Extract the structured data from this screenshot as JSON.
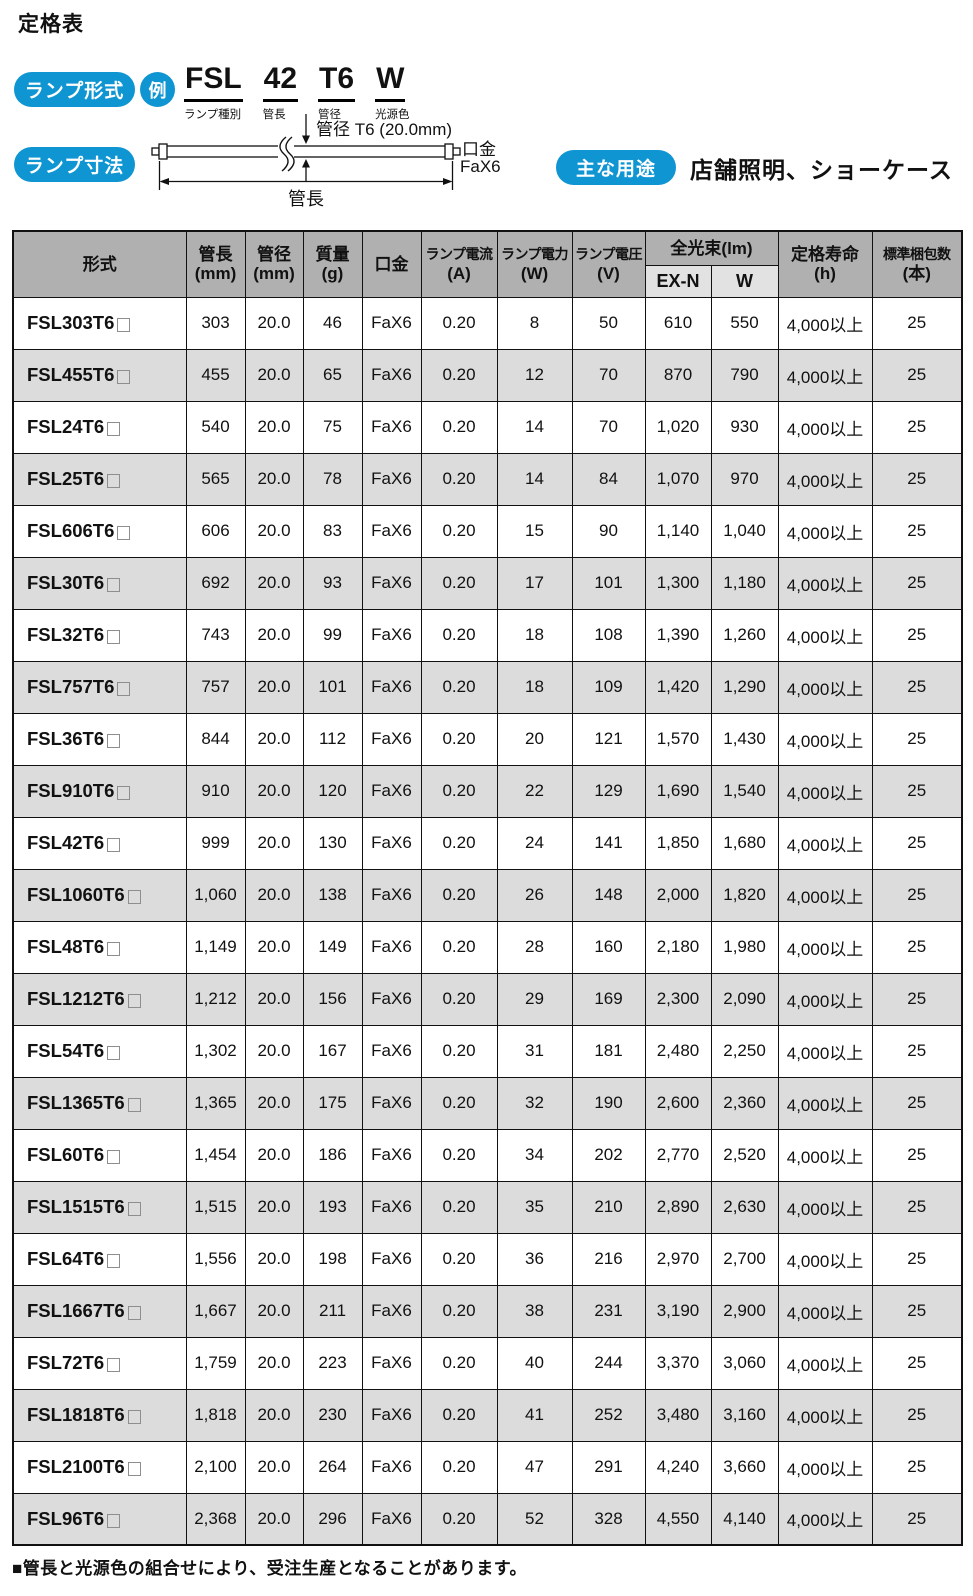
{
  "page": {
    "title": "定格表",
    "footnote": "■管長と光源色の組合せにより、受注生産となることがあります。"
  },
  "colors": {
    "accent_blue": "#1095d3",
    "header_gray": "#b0b0b0",
    "subheader_gray": "#e2e2e2",
    "row_alt_gray": "#dcdcdc",
    "border_black": "#111111"
  },
  "lamp_format": {
    "badge": "ランプ形式",
    "example_badge": "例",
    "tokens": [
      {
        "text": "FSL",
        "label": "ランプ種別"
      },
      {
        "text": "42",
        "label": "管長"
      },
      {
        "text": "T6",
        "label": "管径"
      },
      {
        "text": "W",
        "label": "光源色"
      }
    ]
  },
  "lamp_dimensions": {
    "badge": "ランプ寸法",
    "diameter_label": "管径 T6 (20.0mm)",
    "base_label_line1": "口金",
    "base_label_line2": "FaX6",
    "length_label": "管長"
  },
  "main_use": {
    "badge": "主な用途",
    "text": "店舗照明、ショーケース"
  },
  "table": {
    "headers": {
      "model": "形式",
      "length_line1": "管長",
      "length_line2": "(mm)",
      "diameter_line1": "管径",
      "diameter_line2": "(mm)",
      "mass_line1": "質量",
      "mass_line2": "(g)",
      "base": "口金",
      "current_line1": "ランプ電流",
      "current_line2": "(A)",
      "power_line1": "ランプ電力",
      "power_line2": "(W)",
      "voltage_line1": "ランプ電圧",
      "voltage_line2": "(V)",
      "flux_group": "全光束(lm)",
      "flux_exn": "EX-N",
      "flux_w": "W",
      "life_line1": "定格寿命",
      "life_line2": "(h)",
      "pack_line1": "標準梱包数",
      "pack_line2": "(本)"
    },
    "column_keys": [
      "model",
      "length_mm",
      "diameter_mm",
      "mass_g",
      "base",
      "current_a",
      "power_w",
      "voltage_v",
      "flux_exn_lm",
      "flux_w_lm",
      "rated_life_h",
      "pack_qty"
    ],
    "rows": [
      [
        "FSL303T6",
        "303",
        "20.0",
        "46",
        "FaX6",
        "0.20",
        "8",
        "50",
        "610",
        "550",
        "4,000以上",
        "25"
      ],
      [
        "FSL455T6",
        "455",
        "20.0",
        "65",
        "FaX6",
        "0.20",
        "12",
        "70",
        "870",
        "790",
        "4,000以上",
        "25"
      ],
      [
        "FSL24T6",
        "540",
        "20.0",
        "75",
        "FaX6",
        "0.20",
        "14",
        "70",
        "1,020",
        "930",
        "4,000以上",
        "25"
      ],
      [
        "FSL25T6",
        "565",
        "20.0",
        "78",
        "FaX6",
        "0.20",
        "14",
        "84",
        "1,070",
        "970",
        "4,000以上",
        "25"
      ],
      [
        "FSL606T6",
        "606",
        "20.0",
        "83",
        "FaX6",
        "0.20",
        "15",
        "90",
        "1,140",
        "1,040",
        "4,000以上",
        "25"
      ],
      [
        "FSL30T6",
        "692",
        "20.0",
        "93",
        "FaX6",
        "0.20",
        "17",
        "101",
        "1,300",
        "1,180",
        "4,000以上",
        "25"
      ],
      [
        "FSL32T6",
        "743",
        "20.0",
        "99",
        "FaX6",
        "0.20",
        "18",
        "108",
        "1,390",
        "1,260",
        "4,000以上",
        "25"
      ],
      [
        "FSL757T6",
        "757",
        "20.0",
        "101",
        "FaX6",
        "0.20",
        "18",
        "109",
        "1,420",
        "1,290",
        "4,000以上",
        "25"
      ],
      [
        "FSL36T6",
        "844",
        "20.0",
        "112",
        "FaX6",
        "0.20",
        "20",
        "121",
        "1,570",
        "1,430",
        "4,000以上",
        "25"
      ],
      [
        "FSL910T6",
        "910",
        "20.0",
        "120",
        "FaX6",
        "0.20",
        "22",
        "129",
        "1,690",
        "1,540",
        "4,000以上",
        "25"
      ],
      [
        "FSL42T6",
        "999",
        "20.0",
        "130",
        "FaX6",
        "0.20",
        "24",
        "141",
        "1,850",
        "1,680",
        "4,000以上",
        "25"
      ],
      [
        "FSL1060T6",
        "1,060",
        "20.0",
        "138",
        "FaX6",
        "0.20",
        "26",
        "148",
        "2,000",
        "1,820",
        "4,000以上",
        "25"
      ],
      [
        "FSL48T6",
        "1,149",
        "20.0",
        "149",
        "FaX6",
        "0.20",
        "28",
        "160",
        "2,180",
        "1,980",
        "4,000以上",
        "25"
      ],
      [
        "FSL1212T6",
        "1,212",
        "20.0",
        "156",
        "FaX6",
        "0.20",
        "29",
        "169",
        "2,300",
        "2,090",
        "4,000以上",
        "25"
      ],
      [
        "FSL54T6",
        "1,302",
        "20.0",
        "167",
        "FaX6",
        "0.20",
        "31",
        "181",
        "2,480",
        "2,250",
        "4,000以上",
        "25"
      ],
      [
        "FSL1365T6",
        "1,365",
        "20.0",
        "175",
        "FaX6",
        "0.20",
        "32",
        "190",
        "2,600",
        "2,360",
        "4,000以上",
        "25"
      ],
      [
        "FSL60T6",
        "1,454",
        "20.0",
        "186",
        "FaX6",
        "0.20",
        "34",
        "202",
        "2,770",
        "2,520",
        "4,000以上",
        "25"
      ],
      [
        "FSL1515T6",
        "1,515",
        "20.0",
        "193",
        "FaX6",
        "0.20",
        "35",
        "210",
        "2,890",
        "2,630",
        "4,000以上",
        "25"
      ],
      [
        "FSL64T6",
        "1,556",
        "20.0",
        "198",
        "FaX6",
        "0.20",
        "36",
        "216",
        "2,970",
        "2,700",
        "4,000以上",
        "25"
      ],
      [
        "FSL1667T6",
        "1,667",
        "20.0",
        "211",
        "FaX6",
        "0.20",
        "38",
        "231",
        "3,190",
        "2,900",
        "4,000以上",
        "25"
      ],
      [
        "FSL72T6",
        "1,759",
        "20.0",
        "223",
        "FaX6",
        "0.20",
        "40",
        "244",
        "3,370",
        "3,060",
        "4,000以上",
        "25"
      ],
      [
        "FSL1818T6",
        "1,818",
        "20.0",
        "230",
        "FaX6",
        "0.20",
        "41",
        "252",
        "3,480",
        "3,160",
        "4,000以上",
        "25"
      ],
      [
        "FSL2100T6",
        "2,100",
        "20.0",
        "264",
        "FaX6",
        "0.20",
        "47",
        "291",
        "4,240",
        "3,660",
        "4,000以上",
        "25"
      ],
      [
        "FSL96T6",
        "2,368",
        "20.0",
        "296",
        "FaX6",
        "0.20",
        "52",
        "328",
        "4,550",
        "4,140",
        "4,000以上",
        "25"
      ]
    ]
  }
}
